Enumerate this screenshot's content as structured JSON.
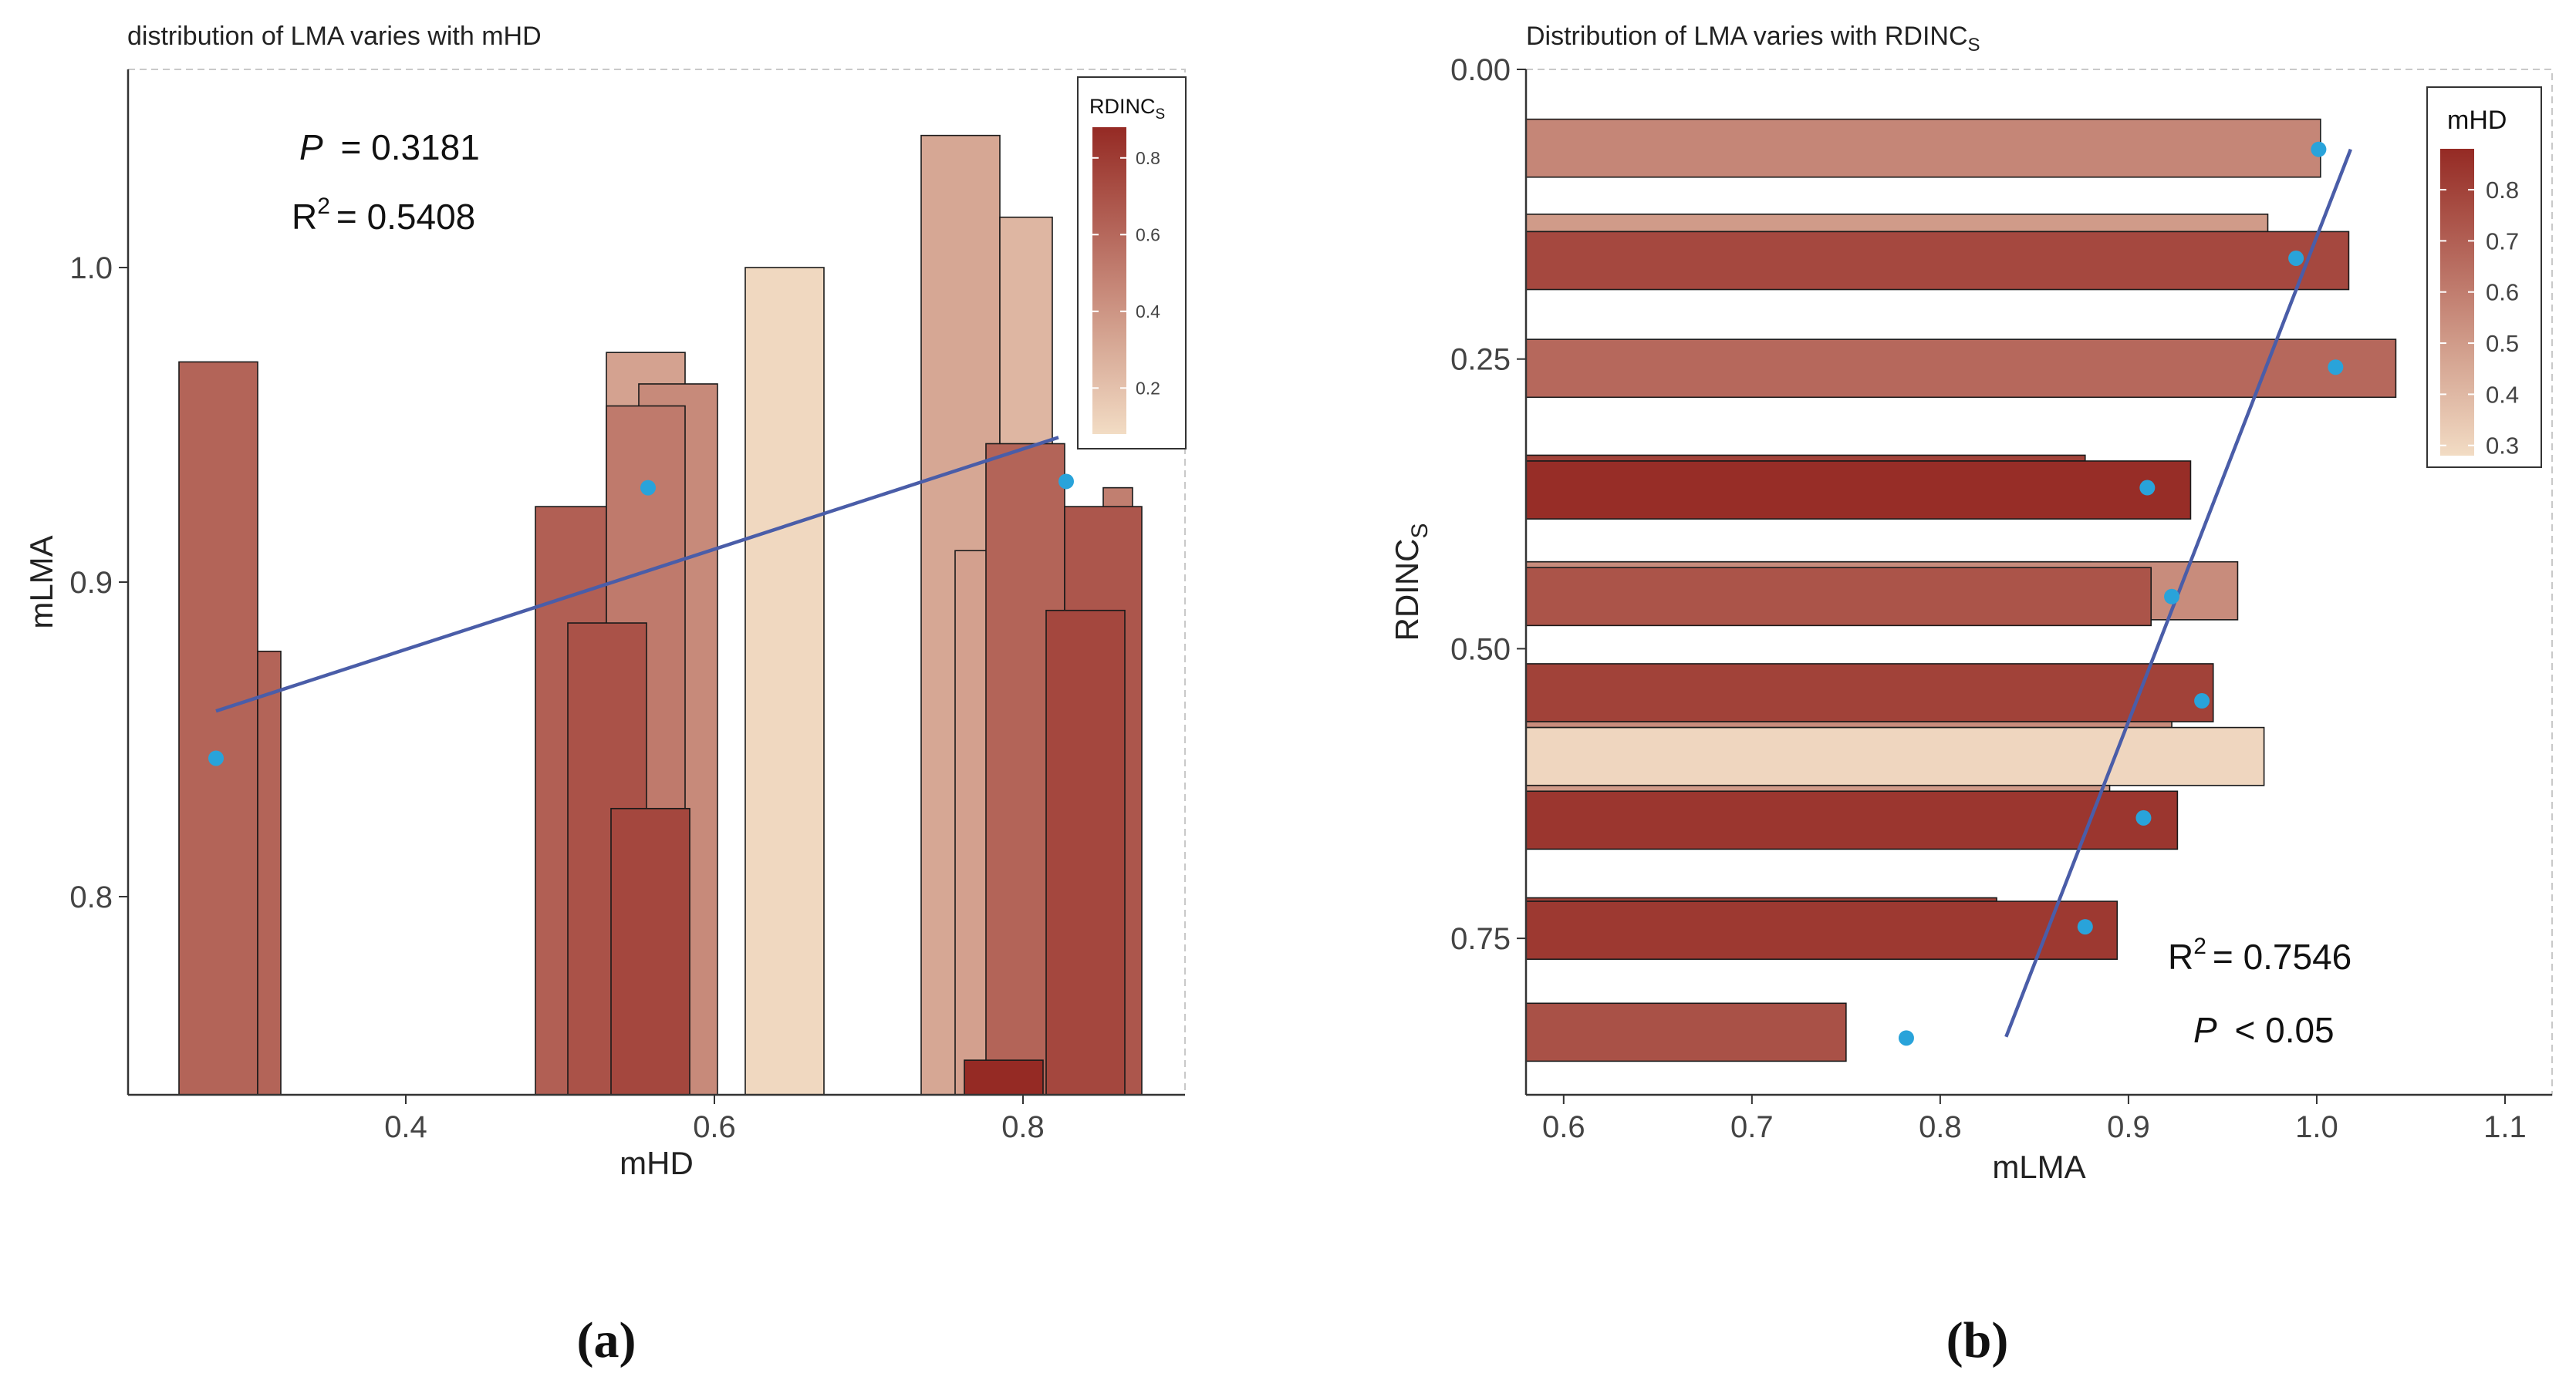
{
  "chart_data": [
    {
      "id": "a",
      "type": "bar",
      "title": "distribution of LMA varies with mHD",
      "xlabel": "mHD",
      "ylabel": "mLMA",
      "xlim": [
        0.22,
        0.905
      ],
      "ylim": [
        0.737,
        1.063
      ],
      "xticks": [
        0.4,
        0.6,
        0.8
      ],
      "xtick_labels": [
        "0.4",
        "0.6",
        "0.8"
      ],
      "yticks": [
        0.8,
        0.9,
        1.0
      ],
      "ytick_labels": [
        "0.8",
        "0.9",
        "1.0"
      ],
      "bar_baseline": 0.737,
      "bars": [
        {
          "x0": 0.253,
          "x1": 0.304,
          "value": 0.97,
          "color_value": 0.62
        },
        {
          "x0": 0.304,
          "x1": 0.319,
          "value": 0.878,
          "color_value": 0.62
        },
        {
          "x0": 0.484,
          "x1": 0.535,
          "value": 0.924,
          "color_value": 0.64
        },
        {
          "x0": 0.53,
          "x1": 0.581,
          "value": 0.973,
          "color_value": 0.34
        },
        {
          "x0": 0.551,
          "x1": 0.602,
          "value": 0.963,
          "color_value": 0.45
        },
        {
          "x0": 0.53,
          "x1": 0.581,
          "value": 0.956,
          "color_value": 0.52
        },
        {
          "x0": 0.505,
          "x1": 0.556,
          "value": 0.887,
          "color_value": 0.7
        },
        {
          "x0": 0.533,
          "x1": 0.584,
          "value": 0.828,
          "color_value": 0.75
        },
        {
          "x0": 0.62,
          "x1": 0.671,
          "value": 1.0,
          "color_value": 0.1
        },
        {
          "x0": 0.734,
          "x1": 0.785,
          "value": 1.042,
          "color_value": 0.32
        },
        {
          "x0": 0.785,
          "x1": 0.819,
          "value": 1.016,
          "color_value": 0.25
        },
        {
          "x0": 0.756,
          "x1": 0.807,
          "value": 0.91,
          "color_value": 0.35
        },
        {
          "x0": 0.852,
          "x1": 0.871,
          "value": 0.93,
          "color_value": 0.5
        },
        {
          "x0": 0.776,
          "x1": 0.827,
          "value": 0.944,
          "color_value": 0.62
        },
        {
          "x0": 0.827,
          "x1": 0.877,
          "value": 0.924,
          "color_value": 0.68
        },
        {
          "x0": 0.815,
          "x1": 0.866,
          "value": 0.891,
          "color_value": 0.75
        },
        {
          "x0": 0.762,
          "x1": 0.813,
          "value": 0.748,
          "color_value": 0.88
        }
      ],
      "points": [
        {
          "x": 0.277,
          "y": 0.844
        },
        {
          "x": 0.557,
          "y": 0.93
        },
        {
          "x": 0.828,
          "y": 0.932
        }
      ],
      "fit_line": [
        [
          0.277,
          0.859
        ],
        [
          0.823,
          0.946
        ]
      ],
      "annotations": [
        {
          "label": "P",
          "text": "= 0.3181"
        },
        {
          "label": "R2",
          "text": "= 0.5408"
        }
      ],
      "legend": {
        "title": "RDINC",
        "title_sub": "S",
        "ticks": [
          "0.8",
          "0.6",
          "0.4",
          "0.2"
        ],
        "tick_values": [
          0.8,
          0.6,
          0.4,
          0.2
        ],
        "range": [
          0.08,
          0.88
        ],
        "position": "top-right"
      },
      "panel_label": "(a)"
    },
    {
      "id": "b",
      "type": "bar",
      "orientation": "horizontal",
      "title": "Distribution of LMA varies with RDINC",
      "title_sub": "S",
      "xlabel": "mLMA",
      "ylabel": "RDINC",
      "ylabel_sub": "S",
      "xlim": [
        0.58,
        1.125
      ],
      "ylim": [
        0.0,
        0.885
      ],
      "y_reversed": true,
      "xticks": [
        0.6,
        0.7,
        0.8,
        0.9,
        1.0,
        1.1
      ],
      "xtick_labels": [
        "0.6",
        "0.7",
        "0.8",
        "0.9",
        "1.0",
        "1.1"
      ],
      "yticks": [
        0.0,
        0.25,
        0.5,
        0.75
      ],
      "ytick_labels": [
        "0.00",
        "0.25",
        "0.50",
        "0.75"
      ],
      "bar_baseline": 0.58,
      "bars": [
        {
          "y0": 0.043,
          "y1": 0.093,
          "value": 1.002,
          "color_value": 0.57
        },
        {
          "y0": 0.125,
          "y1": 0.14,
          "value": 0.974,
          "color_value": 0.5
        },
        {
          "y0": 0.14,
          "y1": 0.19,
          "value": 1.017,
          "color_value": 0.78
        },
        {
          "y0": 0.233,
          "y1": 0.283,
          "value": 1.042,
          "color_value": 0.67
        },
        {
          "y0": 0.333,
          "y1": 0.338,
          "value": 0.877,
          "color_value": 0.8
        },
        {
          "y0": 0.338,
          "y1": 0.388,
          "value": 0.933,
          "color_value": 0.87
        },
        {
          "y0": 0.425,
          "y1": 0.43,
          "value": 0.88,
          "color_value": 0.55
        },
        {
          "y0": 0.425,
          "y1": 0.475,
          "value": 0.958,
          "color_value": 0.55
        },
        {
          "y0": 0.43,
          "y1": 0.48,
          "value": 0.912,
          "color_value": 0.74
        },
        {
          "y0": 0.513,
          "y1": 0.563,
          "value": 0.945,
          "color_value": 0.8
        },
        {
          "y0": 0.563,
          "y1": 0.568,
          "value": 0.923,
          "color_value": 0.55
        },
        {
          "y0": 0.568,
          "y1": 0.618,
          "value": 0.972,
          "color_value": 0.3
        },
        {
          "y0": 0.618,
          "y1": 0.623,
          "value": 0.89,
          "color_value": 0.5
        },
        {
          "y0": 0.623,
          "y1": 0.673,
          "value": 0.926,
          "color_value": 0.84
        },
        {
          "y0": 0.715,
          "y1": 0.718,
          "value": 0.83,
          "color_value": 0.8
        },
        {
          "y0": 0.718,
          "y1": 0.768,
          "value": 0.894,
          "color_value": 0.83
        },
        {
          "y0": 0.806,
          "y1": 0.856,
          "value": 0.75,
          "color_value": 0.75
        }
      ],
      "points": [
        {
          "x": 1.001,
          "y": 0.069
        },
        {
          "x": 0.989,
          "y": 0.163
        },
        {
          "x": 1.01,
          "y": 0.257
        },
        {
          "x": 0.91,
          "y": 0.361
        },
        {
          "x": 0.923,
          "y": 0.455
        },
        {
          "x": 0.939,
          "y": 0.545
        },
        {
          "x": 0.908,
          "y": 0.646
        },
        {
          "x": 0.877,
          "y": 0.74
        },
        {
          "x": 0.782,
          "y": 0.836
        }
      ],
      "fit_line": [
        [
          1.018,
          0.069
        ],
        [
          0.835,
          0.835
        ]
      ],
      "annotations": [
        {
          "label": "R2",
          "text": "= 0.7546"
        },
        {
          "label": "P",
          "text": "< 0.05"
        }
      ],
      "legend": {
        "title": "mHD",
        "ticks": [
          "0.8",
          "0.7",
          "0.6",
          "0.5",
          "0.4",
          "0.3"
        ],
        "tick_values": [
          0.8,
          0.7,
          0.6,
          0.5,
          0.4,
          0.3
        ],
        "range": [
          0.28,
          0.88
        ],
        "position": "top-right"
      },
      "panel_label": "(b)"
    }
  ],
  "colors": {
    "low": "#f2dcc4",
    "high": "#952a24",
    "point": "#29a3da",
    "fit_line": "#4a5da8",
    "axis": "#333333",
    "frame": "#c9c9c9",
    "text": "#444444",
    "bar_stroke": "#1a1a1a"
  }
}
